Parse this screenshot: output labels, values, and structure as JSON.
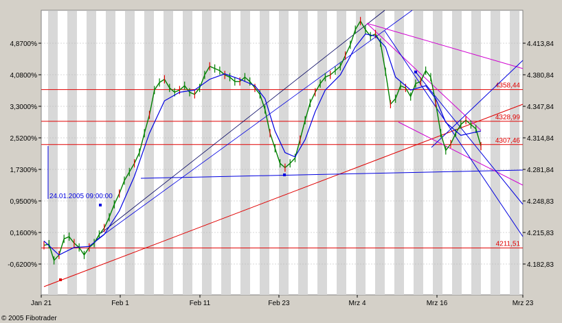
{
  "chart_data": {
    "type": "line",
    "left_axis_ticks": [
      "4,8700%",
      "4,0800%",
      "3,3000%",
      "2,5200%",
      "1,7300%",
      "0,9500%",
      "0,1600%",
      "-0,6200%"
    ],
    "right_axis_ticks": [
      "4.413,84",
      "4.380,84",
      "4.347,84",
      "4.314,84",
      "4.281,84",
      "4.248,83",
      "4.215,83",
      "4.182,83"
    ],
    "x_ticks": [
      "Jan 21",
      "Feb 1",
      "Feb 11",
      "Feb 23",
      "Mrz 4",
      "Mrz 16",
      "Mrz 23"
    ],
    "y_range_right": [
      4168.0,
      4432.0
    ],
    "levels": [
      {
        "label": "4358,44",
        "value": 4358.44
      },
      {
        "label": "4328,99",
        "value": 4328.99
      },
      {
        "label": "4307,46",
        "value": 4307.46
      },
      {
        "label": "4211,51",
        "value": 4211.51
      }
    ],
    "annotation": "24.01.2005 09:00:00",
    "price_series": [
      [
        0,
        4214
      ],
      [
        2,
        4215
      ],
      [
        4,
        4200
      ],
      [
        6,
        4205
      ],
      [
        8,
        4220
      ],
      [
        10,
        4222
      ],
      [
        12,
        4216
      ],
      [
        14,
        4212
      ],
      [
        16,
        4205
      ],
      [
        18,
        4212
      ],
      [
        20,
        4216
      ],
      [
        22,
        4224
      ],
      [
        24,
        4230
      ],
      [
        26,
        4240
      ],
      [
        28,
        4252
      ],
      [
        30,
        4262
      ],
      [
        32,
        4274
      ],
      [
        34,
        4282
      ],
      [
        36,
        4290
      ],
      [
        38,
        4300
      ],
      [
        40,
        4318
      ],
      [
        42,
        4335
      ],
      [
        44,
        4358
      ],
      [
        46,
        4365
      ],
      [
        48,
        4368
      ],
      [
        50,
        4360
      ],
      [
        52,
        4356
      ],
      [
        54,
        4358
      ],
      [
        56,
        4362
      ],
      [
        58,
        4356
      ],
      [
        60,
        4354
      ],
      [
        62,
        4360
      ],
      [
        64,
        4372
      ],
      [
        66,
        4380
      ],
      [
        68,
        4378
      ],
      [
        70,
        4376
      ],
      [
        72,
        4372
      ],
      [
        74,
        4370
      ],
      [
        76,
        4366
      ],
      [
        78,
        4366
      ],
      [
        80,
        4370
      ],
      [
        82,
        4366
      ],
      [
        84,
        4360
      ],
      [
        86,
        4354
      ],
      [
        88,
        4340
      ],
      [
        90,
        4318
      ],
      [
        92,
        4304
      ],
      [
        94,
        4290
      ],
      [
        96,
        4286
      ],
      [
        98,
        4290
      ],
      [
        100,
        4295
      ],
      [
        102,
        4312
      ],
      [
        104,
        4330
      ],
      [
        106,
        4346
      ],
      [
        108,
        4356
      ],
      [
        110,
        4364
      ],
      [
        112,
        4370
      ],
      [
        114,
        4372
      ],
      [
        116,
        4376
      ],
      [
        118,
        4380
      ],
      [
        120,
        4390
      ],
      [
        122,
        4400
      ],
      [
        124,
        4414
      ],
      [
        126,
        4422
      ],
      [
        128,
        4414
      ],
      [
        130,
        4408
      ],
      [
        132,
        4410
      ],
      [
        134,
        4402
      ],
      [
        136,
        4375
      ],
      [
        138,
        4345
      ],
      [
        140,
        4350
      ],
      [
        142,
        4362
      ],
      [
        144,
        4360
      ],
      [
        146,
        4352
      ],
      [
        148,
        4364
      ],
      [
        150,
        4366
      ],
      [
        152,
        4376
      ],
      [
        154,
        4370
      ],
      [
        156,
        4346
      ],
      [
        158,
        4318
      ],
      [
        160,
        4302
      ],
      [
        162,
        4308
      ],
      [
        164,
        4318
      ],
      [
        166,
        4326
      ],
      [
        168,
        4330
      ],
      [
        170,
        4326
      ],
      [
        172,
        4322
      ],
      [
        174,
        4306
      ]
    ],
    "moving_average": [
      [
        0,
        4218
      ],
      [
        6,
        4205
      ],
      [
        12,
        4212
      ],
      [
        18,
        4213
      ],
      [
        24,
        4224
      ],
      [
        30,
        4246
      ],
      [
        36,
        4278
      ],
      [
        42,
        4318
      ],
      [
        48,
        4348
      ],
      [
        54,
        4356
      ],
      [
        60,
        4358
      ],
      [
        66,
        4368
      ],
      [
        72,
        4373
      ],
      [
        78,
        4368
      ],
      [
        84,
        4362
      ],
      [
        88,
        4350
      ],
      [
        92,
        4320
      ],
      [
        96,
        4300
      ],
      [
        100,
        4296
      ],
      [
        104,
        4312
      ],
      [
        108,
        4338
      ],
      [
        112,
        4358
      ],
      [
        118,
        4372
      ],
      [
        124,
        4398
      ],
      [
        128,
        4410
      ],
      [
        132,
        4408
      ],
      [
        136,
        4398
      ],
      [
        140,
        4370
      ],
      [
        146,
        4358
      ],
      [
        152,
        4362
      ],
      [
        156,
        4350
      ],
      [
        160,
        4328
      ],
      [
        166,
        4316
      ],
      [
        170,
        4318
      ],
      [
        174,
        4320
      ]
    ]
  },
  "footer": {
    "copyright": "© 2005 Fibotrader"
  }
}
